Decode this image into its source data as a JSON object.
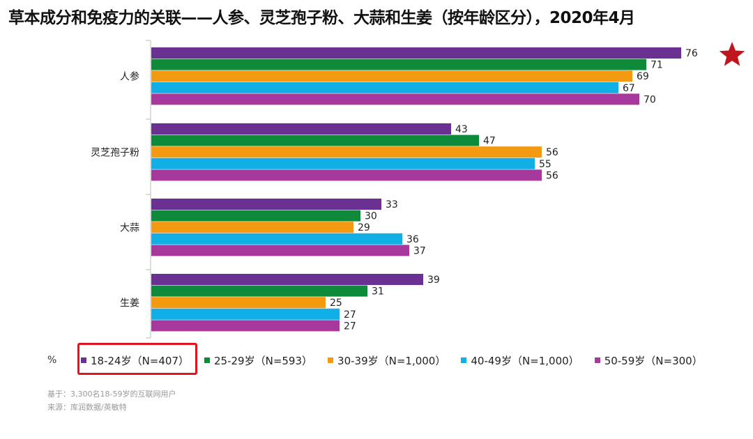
{
  "title": "草本成分和免疫力的关联——人参、灵芝孢子粉、大蒜和生姜（按年龄区分），2020年4月",
  "unit": "%",
  "colors": {
    "series": [
      "#6a3192",
      "#0f8a3a",
      "#f39a10",
      "#12aee6",
      "#a8399c"
    ],
    "highlight": "#e0141e",
    "star": "#c0141e",
    "axis": "#bbbbbb"
  },
  "star_icon": "star-icon",
  "footnotes": {
    "base": "基于：3,300名18-59岁的互联网用户",
    "source": "来源：库润数据/英敏特"
  },
  "chart_data": {
    "type": "bar",
    "orientation": "horizontal",
    "categories": [
      "人参",
      "灵芝孢子粉",
      "大蒜",
      "生姜"
    ],
    "series": [
      {
        "name": "18-24岁（N=407）",
        "values": [
          76,
          43,
          33,
          39
        ]
      },
      {
        "name": "25-29岁（N=593）",
        "values": [
          71,
          47,
          30,
          31
        ]
      },
      {
        "name": "30-39岁（N=1,000）",
        "values": [
          69,
          56,
          29,
          25
        ]
      },
      {
        "name": "40-49岁（N=1,000）",
        "values": [
          67,
          55,
          36,
          27
        ]
      },
      {
        "name": "50-59岁（N=300）",
        "values": [
          70,
          56,
          37,
          27
        ]
      }
    ],
    "xlim": [
      0,
      80
    ],
    "grid": false,
    "legend_position": "bottom",
    "data_labels": true
  }
}
